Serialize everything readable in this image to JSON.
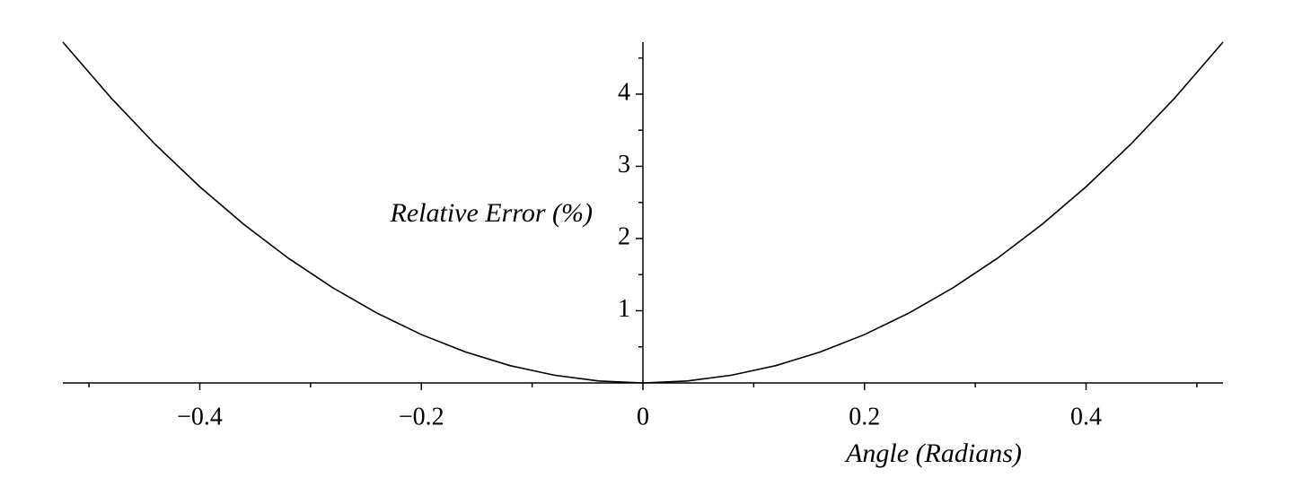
{
  "chart_data": {
    "type": "line",
    "x_label": "Angle (Radians)",
    "y_label": "Relative Error (%)",
    "x": [
      -0.5236,
      -0.48,
      -0.44,
      -0.4,
      -0.36,
      -0.32,
      -0.28,
      -0.24,
      -0.2,
      -0.16,
      -0.12,
      -0.08,
      -0.04,
      0,
      0.04,
      0.08,
      0.12,
      0.16,
      0.2,
      0.24,
      0.28,
      0.32,
      0.36,
      0.4,
      0.44,
      0.48,
      0.5236
    ],
    "series": [
      {
        "color": "#000000",
        "values": [
          4.72,
          3.946,
          3.301,
          2.717,
          2.193,
          1.727,
          1.319,
          0.967,
          0.67,
          0.428,
          0.24,
          0.107,
          0.027,
          0,
          0.027,
          0.107,
          0.24,
          0.428,
          0.67,
          0.967,
          1.319,
          1.727,
          2.193,
          2.717,
          3.301,
          3.946,
          4.72
        ]
      }
    ],
    "xlim": [
      -0.5236,
      0.5236
    ],
    "ylim": [
      0,
      4.72
    ],
    "xticks": [
      {
        "value": -0.4,
        "label": "−0.4"
      },
      {
        "value": -0.2,
        "label": "−0.2"
      },
      0,
      0.2,
      0.4
    ],
    "xminorticks": [
      -0.5,
      -0.3,
      -0.1,
      0.1,
      0.3,
      0.5
    ],
    "yticks": [
      1,
      2,
      3,
      4
    ],
    "yminorticks": [
      0.5,
      1.5,
      2.5,
      3.5,
      4.5
    ]
  }
}
